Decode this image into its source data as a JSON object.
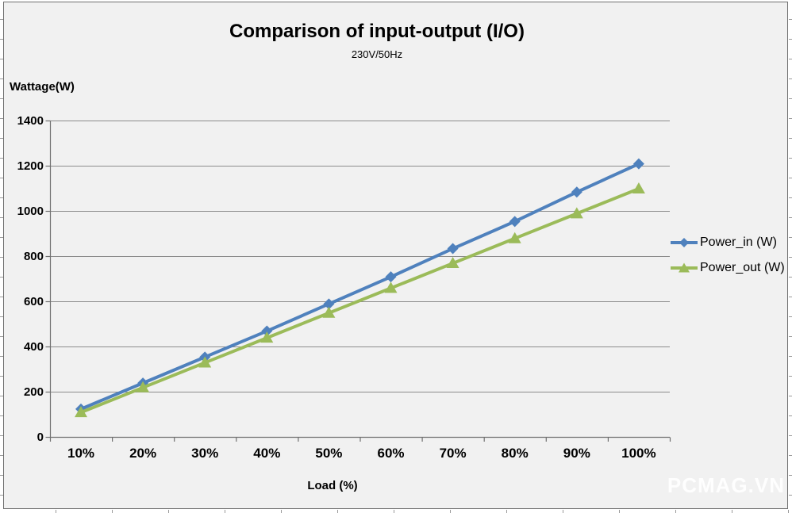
{
  "chart_data": {
    "type": "line",
    "title": "Comparison of input-output (I/O)",
    "subtitle": "230V/50Hz",
    "xlabel": "Load (%)",
    "ylabel": "Wattage(W)",
    "categories": [
      "10%",
      "20%",
      "30%",
      "40%",
      "50%",
      "60%",
      "70%",
      "80%",
      "90%",
      "100%"
    ],
    "series": [
      {
        "name": "Power_in (W)",
        "marker": "diamond",
        "color": "#4F81BD",
        "values": [
          125,
          240,
          355,
          470,
          590,
          710,
          835,
          955,
          1085,
          1210
        ]
      },
      {
        "name": "Power_out (W)",
        "marker": "triangle",
        "color": "#9BBB59",
        "values": [
          110,
          220,
          330,
          440,
          550,
          660,
          770,
          880,
          990,
          1100
        ]
      }
    ],
    "ylim": [
      0,
      1400
    ],
    "y_ticks": [
      0,
      200,
      400,
      600,
      800,
      1000,
      1200,
      1400
    ],
    "grid": true,
    "legend_position": "right"
  },
  "watermark": "PCMAG.VN",
  "colors": {
    "chart_background": "#F1F1F1",
    "gridline": "#8C8C8C",
    "axis": "#707070",
    "chart_border": "#6F6F6F",
    "text": "#000000",
    "watermark": "#FFFFFF"
  }
}
